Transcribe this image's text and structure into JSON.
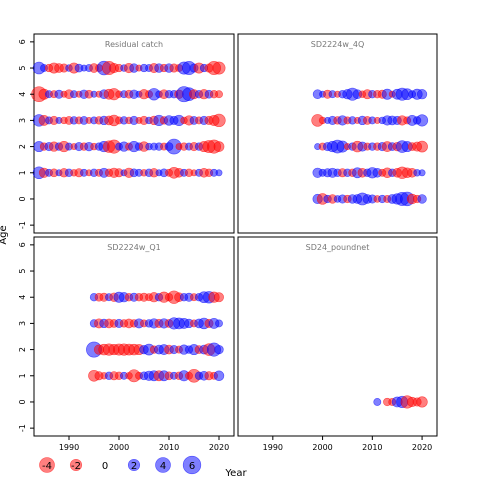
{
  "chart_data": {
    "type": "scatter",
    "subtype": "bubble-residuals",
    "xlabel": "Year",
    "ylabel": "Age",
    "xticks": [
      1990,
      2000,
      2010,
      2020
    ],
    "yticks": [
      -1,
      0,
      1,
      2,
      3,
      4,
      5,
      6
    ],
    "xlim": [
      1983,
      2023
    ],
    "ylim": [
      -1.3,
      6.3
    ],
    "colors": {
      "positive": "#0000ff",
      "negative": "#ff0000"
    },
    "legend": {
      "placement": "bottom-left",
      "values": [
        -4,
        -2,
        0,
        2,
        4,
        6
      ],
      "labels": [
        "-4",
        "-2",
        "0",
        "2",
        "4",
        "6"
      ]
    },
    "panels": [
      {
        "title": "Residual catch",
        "years": [
          1984,
          2020
        ],
        "ages": [
          1,
          2,
          3,
          4,
          5
        ],
        "residuals": {
          "5": [
            2.2,
            0.5,
            -0.6,
            -1.5,
            -1.0,
            -0.8,
            0.4,
            -1.5,
            0.7,
            0.3,
            0.5,
            -1.0,
            -0.5,
            3.2,
            -3.0,
            -1.2,
            -0.6,
            0.4,
            -1.2,
            0.9,
            -0.3,
            0.6,
            0.5,
            -1.1,
            0.9,
            -0.6,
            0.9,
            -0.8,
            -0.5,
            2.4,
            3.0,
            0.8,
            -1.5,
            0.6,
            -0.8,
            -3.0,
            -2.4
          ],
          "4": [
            -4.0,
            -1.5,
            0.5,
            -0.5,
            0.8,
            -0.3,
            -1.0,
            0.5,
            -0.3,
            0.9,
            -0.7,
            0.3,
            -0.3,
            1.0,
            -1.4,
            -2.0,
            -0.4,
            0.5,
            -0.7,
            0.9,
            0.3,
            -1.2,
            -0.5,
            2.1,
            0.4,
            -1.0,
            0.6,
            0.6,
            -0.9,
            4.2,
            2.8,
            -1.1,
            0.6,
            -1.2,
            0.7,
            -0.6,
            -0.5
          ],
          "3": [
            2.1,
            -1.4,
            0.5,
            -0.8,
            0.3,
            -0.4,
            -0.7,
            0.6,
            -0.5,
            0.7,
            -0.3,
            0.5,
            -0.6,
            0.9,
            -1.0,
            -1.7,
            -0.5,
            0.6,
            -0.4,
            0.8,
            -0.3,
            -0.8,
            0.4,
            -0.9,
            1.6,
            -0.6,
            1.3,
            0.8,
            1.6,
            -0.4,
            -1.2,
            0.7,
            -0.5,
            0.8,
            -0.8,
            -1.5,
            -2.6
          ],
          "2": [
            1.5,
            -0.6,
            0.8,
            -1.2,
            0.6,
            -1.6,
            0.5,
            -0.3,
            0.8,
            -0.6,
            0.9,
            -0.4,
            0.6,
            1.6,
            -2.1,
            -3.0,
            0.5,
            1.2,
            -0.5,
            1.6,
            0.6,
            -1.3,
            0.4,
            0.5,
            0.6,
            -0.5,
            0.7,
            4.0,
            -0.3,
            -0.6,
            0.5,
            -0.8,
            0.6,
            -1.5,
            -2.4,
            -3.0,
            -1.4
          ],
          "1": [
            2.2,
            -1.2,
            0.5,
            -0.7,
            0.3,
            -0.9,
            0.6,
            -0.4,
            -0.8,
            0.5,
            -0.3,
            0.6,
            -0.5,
            1.1,
            -0.6,
            -1.2,
            -0.8,
            0.3,
            -1.2,
            0.7,
            0.5,
            -0.4,
            0.6,
            -0.9,
            0.3,
            0.7,
            -0.5,
            -1.8,
            -1.0,
            0.5,
            -0.6,
            -0.3,
            0.5,
            -1.0,
            -0.6,
            0.5,
            0.3
          ]
        }
      },
      {
        "title": "SD2224w_4Q",
        "years": [
          1999,
          2020
        ],
        "ages": [
          0,
          1,
          2,
          3,
          4
        ],
        "residuals": {
          "4": [
            1.0,
            0.3,
            -0.8,
            0.5,
            -0.3,
            0.6,
            1.2,
            2.4,
            1.0,
            -0.4,
            -1.1,
            0.6,
            -0.6,
            -0.8,
            1.5,
            -0.3,
            1.4,
            2.4,
            1.8,
            0.5,
            1.5,
            1.2
          ],
          "3": [
            -2.2,
            -0.4,
            0.3,
            0.8,
            -0.6,
            1.2,
            -0.5,
            0.6,
            -0.3,
            0.9,
            -0.7,
            0.5,
            -0.3,
            0.4,
            1.2,
            1.0,
            0.8,
            -1.2,
            -0.5,
            1.4,
            0.6,
            2.0
          ],
          "2": [
            0.3,
            -0.5,
            0.8,
            1.6,
            2.8,
            1.9,
            -0.3,
            0.6,
            -1.7,
            1.1,
            -0.5,
            0.6,
            -0.6,
            0.8,
            -1.4,
            0.7,
            -0.9,
            2.2,
            1.5,
            -0.7,
            -1.1,
            -1.8
          ],
          "1": [
            1.2,
            0.5,
            0.8,
            1.1,
            0.6,
            -0.8,
            0.6,
            -0.6,
            1.4,
            -1.0,
            0.6,
            1.6,
            1.0,
            -0.5,
            -1.3,
            0.6,
            -1.0,
            -2.1,
            -1.3,
            -1.0,
            0.4,
            0.3
          ],
          "0": [
            1.2,
            -1.7,
            0.6,
            -0.9,
            0.4,
            0.8,
            -0.6,
            0.9,
            1.0,
            2.3,
            1.0,
            0.8,
            -0.4,
            0.6,
            -0.5,
            1.0,
            1.6,
            2.9,
            3.2,
            -1.3,
            -0.6,
            0.9
          ]
        }
      },
      {
        "title": "SD2224w_Q1",
        "years": [
          1995,
          2020
        ],
        "ages": [
          1,
          2,
          3,
          4
        ],
        "residuals": {
          "4": [
            0.6,
            -0.7,
            -0.8,
            0.5,
            -0.9,
            1.5,
            1.2,
            -0.6,
            0.8,
            -0.6,
            -0.8,
            -0.5,
            -1.2,
            0.6,
            -1.6,
            -0.6,
            -2.6,
            -1.0,
            0.6,
            0.8,
            -0.5,
            0.6,
            1.8,
            2.1,
            -1.6,
            -1.1
          ],
          "3": [
            0.6,
            -1.1,
            0.9,
            -1.0,
            -0.7,
            0.8,
            -0.6,
            -1.0,
            -0.6,
            1.1,
            -0.5,
            0.6,
            1.2,
            -0.8,
            1.2,
            -0.7,
            2.0,
            1.8,
            1.4,
            0.9,
            -0.5,
            1.0,
            1.7,
            -0.8,
            1.4,
            0.5
          ],
          "2": [
            4.2,
            -1.2,
            -1.7,
            -2.0,
            -1.6,
            -1.9,
            -2.0,
            -1.8,
            -1.7,
            -1.5,
            0.9,
            1.8,
            -0.6,
            1.0,
            1.4,
            -1.0,
            0.8,
            -0.5,
            1.2,
            0.6,
            1.5,
            -0.7,
            1.0,
            -2.2,
            3.0,
            0.9
          ],
          "1": [
            -1.8,
            -0.8,
            -0.4,
            0.6,
            -0.8,
            -0.6,
            0.5,
            -0.4,
            -2.4,
            -0.5,
            0.7,
            1.2,
            1.4,
            -1.4,
            1.4,
            -0.7,
            0.5,
            -0.6,
            1.5,
            -0.5,
            -2.8,
            0.6,
            1.0,
            -0.8,
            -0.5,
            1.3
          ]
        }
      },
      {
        "title": "SD24_poundnet",
        "years": [
          2011,
          2020
        ],
        "ages": [
          0
        ],
        "residuals": {
          "0": [
            0.5,
            null,
            -0.6,
            -0.5,
            1.4,
            2.0,
            -2.5,
            -1.2,
            -0.8,
            -1.6
          ]
        }
      }
    ]
  }
}
